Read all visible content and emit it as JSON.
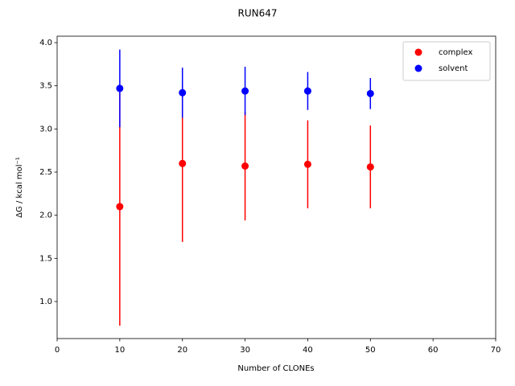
{
  "chart_data": {
    "type": "scatter",
    "title": "RUN647",
    "x_label": "Number of CLONEs",
    "y_label": "ΔG / kcal mol⁻¹",
    "x": [
      10,
      20,
      30,
      40,
      50
    ],
    "series": [
      {
        "name": "complex",
        "color": "#ff0000",
        "values": [
          2.1,
          2.6,
          2.57,
          2.59,
          2.56
        ],
        "errors": [
          1.38,
          0.91,
          0.63,
          0.51,
          0.48
        ]
      },
      {
        "name": "solvent",
        "color": "#0000ff",
        "values": [
          3.47,
          3.42,
          3.44,
          3.44,
          3.41
        ],
        "errors": [
          0.45,
          0.29,
          0.28,
          0.22,
          0.18
        ]
      }
    ],
    "xlim": [
      0,
      70
    ],
    "xticks": [
      0,
      10,
      20,
      30,
      40,
      50,
      60,
      70
    ],
    "ylim": [
      0.571,
      4.075
    ],
    "yticks": [
      {
        "value": 1.0,
        "label": "1.0"
      },
      {
        "value": 1.5,
        "label": "1.5"
      },
      {
        "value": 2.0,
        "label": "2.0"
      },
      {
        "value": 2.5,
        "label": "2.5"
      },
      {
        "value": 3.0,
        "label": "3.0"
      },
      {
        "value": 3.5,
        "label": "3.5"
      },
      {
        "value": 4.0,
        "label": "4.0"
      }
    ],
    "legend": "upper right",
    "grid": false
  }
}
